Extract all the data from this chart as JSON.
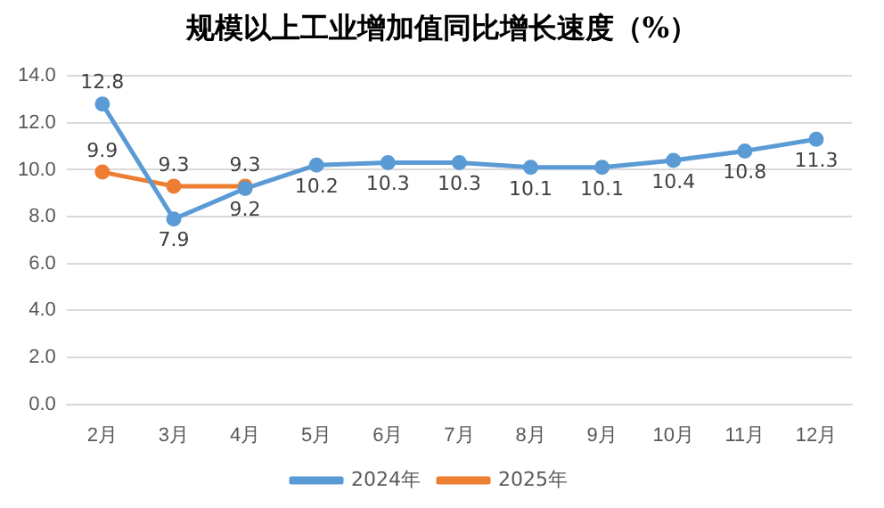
{
  "chart_data": {
    "type": "line",
    "title": "规模以上工业增加值同比增长速度（%）",
    "categories": [
      "2月",
      "3月",
      "4月",
      "5月",
      "6月",
      "7月",
      "8月",
      "9月",
      "10月",
      "11月",
      "12月"
    ],
    "series": [
      {
        "name": "2024年",
        "color": "#5b9bd5",
        "values": [
          12.8,
          7.9,
          9.2,
          10.2,
          10.3,
          10.3,
          10.1,
          10.1,
          10.4,
          10.8,
          11.3
        ]
      },
      {
        "name": "2025年",
        "color": "#ed7d31",
        "values": [
          9.9,
          9.3,
          9.3,
          null,
          null,
          null,
          null,
          null,
          null,
          null,
          null
        ]
      }
    ],
    "ylim": [
      0,
      14
    ],
    "yticks": [
      {
        "value": 0,
        "label": "0.0"
      },
      {
        "value": 2,
        "label": "2.0"
      },
      {
        "value": 4,
        "label": "4.0"
      },
      {
        "value": 6,
        "label": "6.0"
      },
      {
        "value": 8,
        "label": "8.0"
      },
      {
        "value": 10,
        "label": "10.0"
      },
      {
        "value": 12,
        "label": "12.0"
      },
      {
        "value": 14,
        "label": "14.0"
      }
    ],
    "grid": "y",
    "legend": "bottom",
    "marker": "circle",
    "line_style": "solid",
    "data_labels": true
  }
}
